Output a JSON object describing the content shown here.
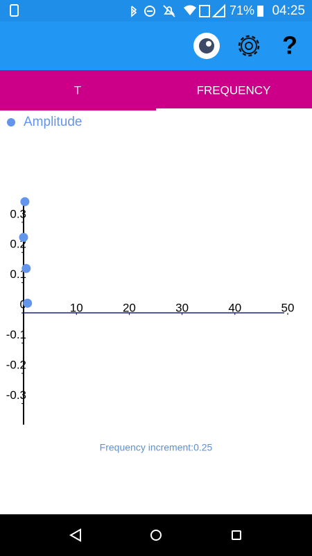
{
  "status_bar": {
    "battery": "71%",
    "time": "04:25"
  },
  "app_bar": {
    "help_icon": "?"
  },
  "tabs": [
    "T",
    "FREQUENCY"
  ],
  "chart_data": {
    "type": "scatter",
    "series": [
      {
        "name": "Amplitude",
        "color": "#6495ed",
        "x": [
          0.25,
          0,
          0.5,
          0.75
        ],
        "values": [
          0.368,
          0.25,
          0.147,
          0.032
        ]
      }
    ],
    "xlim": [
      0,
      50
    ],
    "xticks": [
      10,
      20,
      30,
      40,
      50
    ],
    "ylim": [
      -0.37,
      0.38
    ],
    "yticks": [
      0.3,
      0.2,
      0.1,
      0,
      -0.1,
      -0.2,
      -0.3
    ],
    "legend": "top-left"
  },
  "footer": "Frequency increment:0.25"
}
